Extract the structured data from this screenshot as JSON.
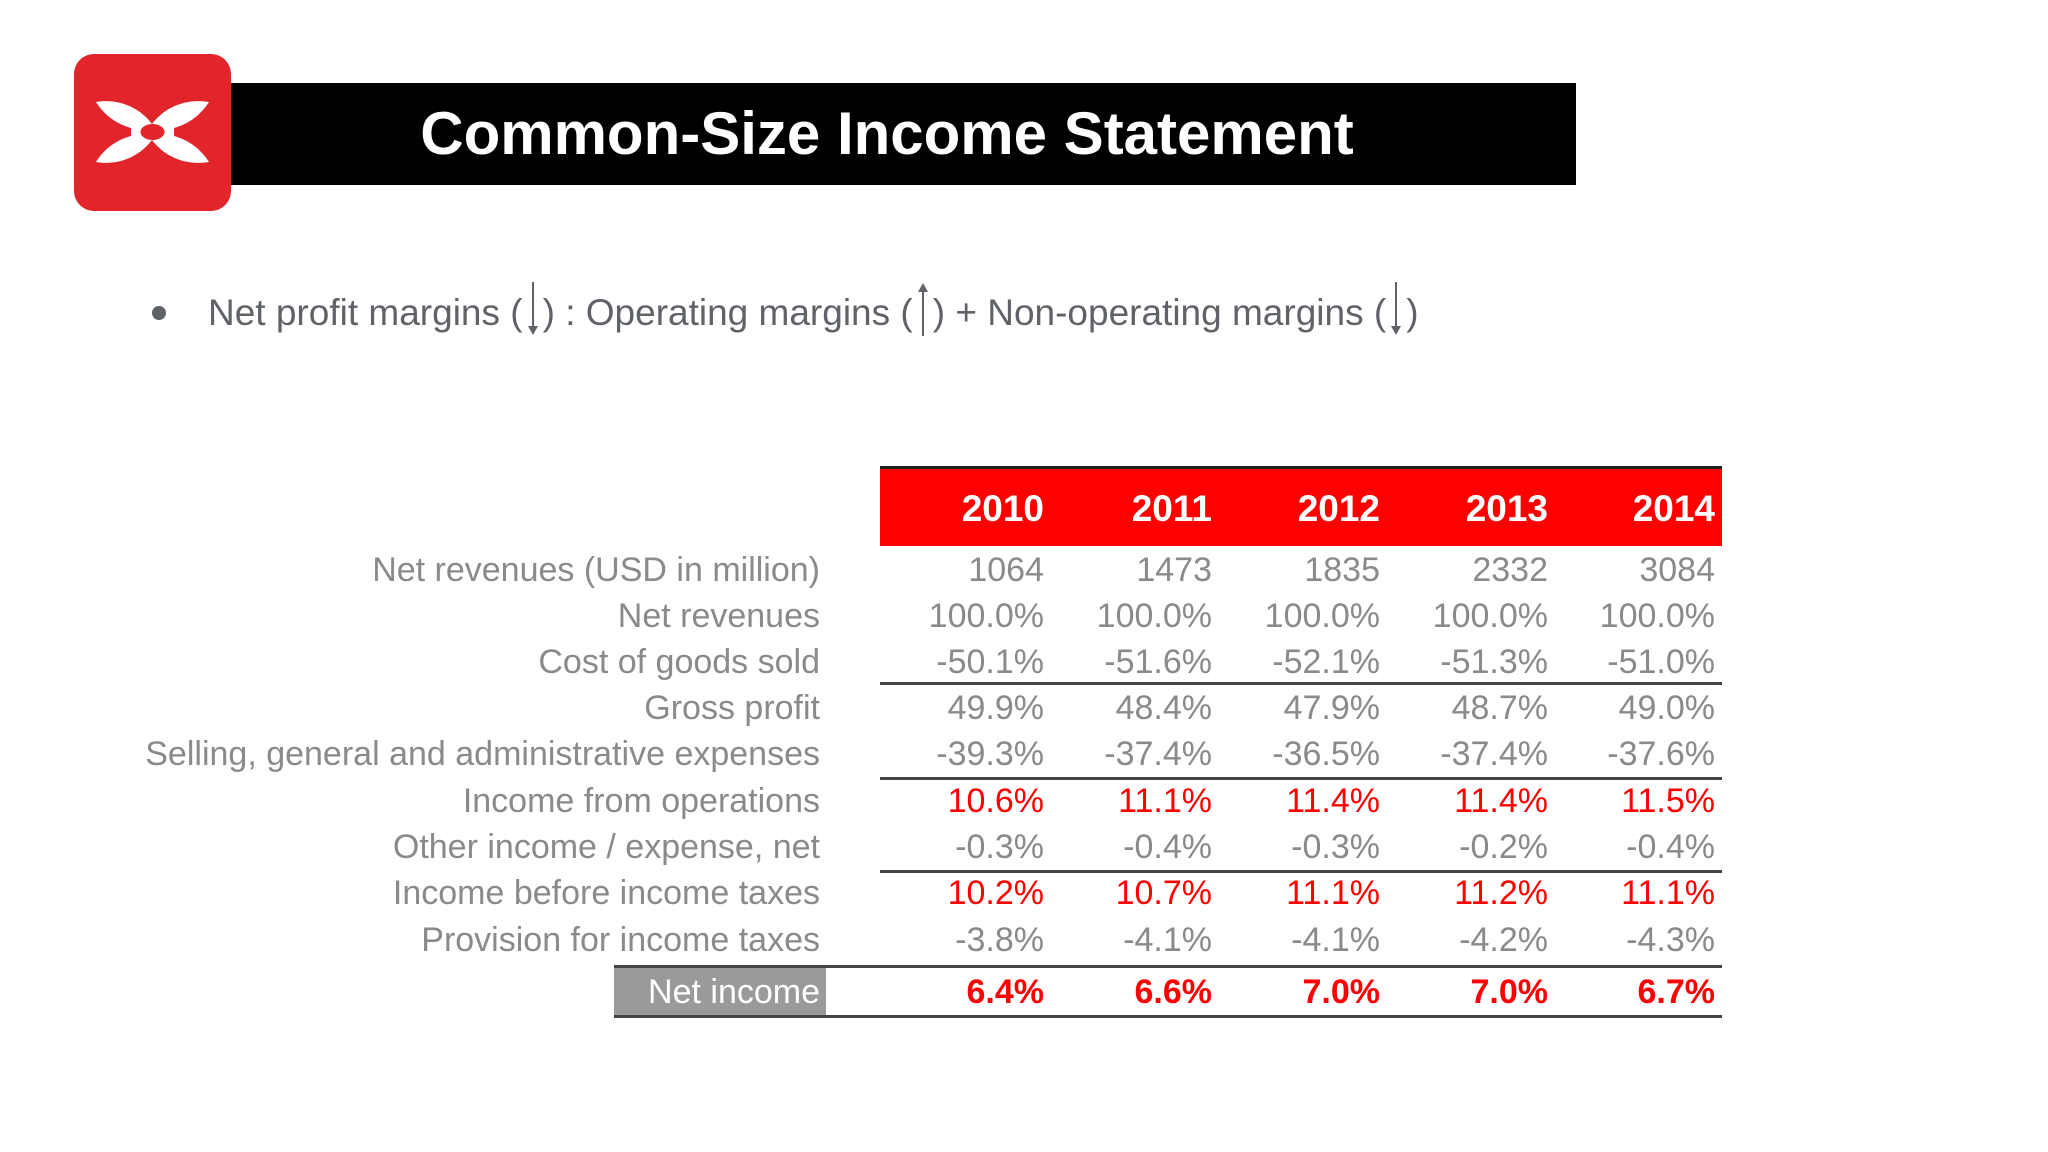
{
  "slide": {
    "title": "Common-Size Income Statement",
    "bullet": {
      "part1": "Net profit margins (",
      "part2": ") : Operating margins (",
      "part3": ") + Non-operating margins (",
      "part4": ")",
      "arrows": [
        "down-arrow-icon",
        "up-arrow-icon",
        "down-arrow-icon"
      ]
    }
  },
  "colors": {
    "brand_red": "#e1252b",
    "header_red": "#ff0000",
    "text_gray": "#8a8a8a"
  },
  "table": {
    "years": [
      "2010",
      "2011",
      "2012",
      "2013",
      "2014"
    ],
    "rows": [
      {
        "label": "Net revenues (USD in million)",
        "values": [
          "1064",
          "1473",
          "1835",
          "2332",
          "3084"
        ],
        "style": "normal"
      },
      {
        "label": "Net revenues",
        "values": [
          "100.0%",
          "100.0%",
          "100.0%",
          "100.0%",
          "100.0%"
        ],
        "style": "normal"
      },
      {
        "label": "Cost of goods sold",
        "values": [
          "-50.1%",
          "-51.6%",
          "-52.1%",
          "-51.3%",
          "-51.0%"
        ],
        "style": "normal"
      },
      {
        "label": "Gross profit",
        "values": [
          "49.9%",
          "48.4%",
          "47.9%",
          "48.7%",
          "49.0%"
        ],
        "style": "normal"
      },
      {
        "label": "Selling, general and administrative expenses",
        "values": [
          "-39.3%",
          "-37.4%",
          "-36.5%",
          "-37.4%",
          "-37.6%"
        ],
        "style": "normal"
      },
      {
        "label": "Income from operations",
        "values": [
          "10.6%",
          "11.1%",
          "11.4%",
          "11.4%",
          "11.5%"
        ],
        "style": "red"
      },
      {
        "label": "Other income / expense, net",
        "values": [
          "-0.3%",
          "-0.4%",
          "-0.3%",
          "-0.2%",
          "-0.4%"
        ],
        "style": "normal"
      },
      {
        "label": "Income before income taxes",
        "values": [
          "10.2%",
          "10.7%",
          "11.1%",
          "11.2%",
          "11.1%"
        ],
        "style": "red"
      },
      {
        "label": "Provision for income taxes",
        "values": [
          "-3.8%",
          "-4.1%",
          "-4.1%",
          "-4.2%",
          "-4.3%"
        ],
        "style": "normal"
      },
      {
        "label": "Net income",
        "values": [
          "6.4%",
          "6.6%",
          "7.0%",
          "7.0%",
          "6.7%"
        ],
        "style": "bold"
      }
    ]
  }
}
